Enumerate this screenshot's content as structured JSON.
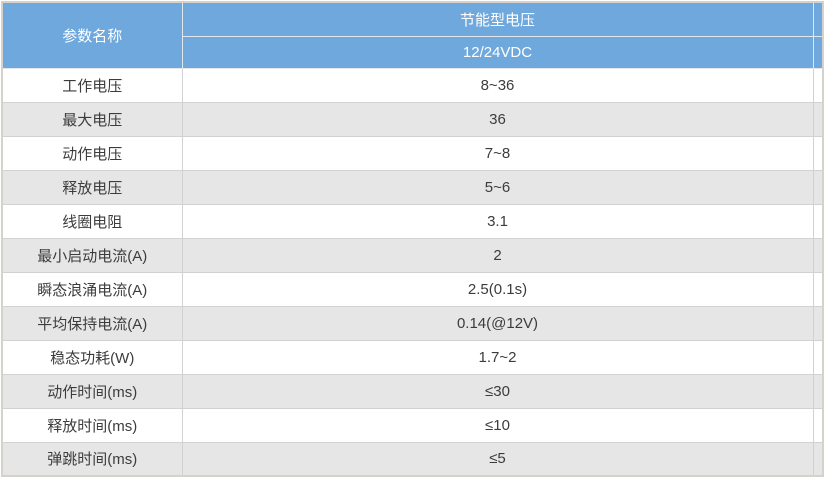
{
  "table": {
    "header": {
      "param_col": "参数名称",
      "group": "节能型电压",
      "subgroup": "12/24VDC"
    },
    "rows": [
      {
        "label": "工作电压",
        "value": "8~36"
      },
      {
        "label": "最大电压",
        "value": "36"
      },
      {
        "label": "动作电压",
        "value": "7~8"
      },
      {
        "label": "释放电压",
        "value": "5~6"
      },
      {
        "label": "线圈电阻",
        "value": "3.1"
      },
      {
        "label": "最小启动电流(A)",
        "value": "2"
      },
      {
        "label": "瞬态浪涌电流(A)",
        "value": "2.5(0.1s)"
      },
      {
        "label": "平均保持电流(A)",
        "value": "0.14(@12V)"
      },
      {
        "label": "稳态功耗(W)",
        "value": "1.7~2"
      },
      {
        "label": "动作时间(ms)",
        "value": "≤30"
      },
      {
        "label": "释放时间(ms)",
        "value": "≤10"
      },
      {
        "label": "弹跳时间(ms)",
        "value": "≤5"
      }
    ]
  },
  "colors": {
    "header_bg": "#6FA8DC",
    "header_text": "#FFFFFF",
    "stripe_bg": "#E6E6E6",
    "row_bg": "#FFFFFF",
    "grid_border": "#D2D2D2",
    "outer_border": "#D5D2CD",
    "body_text": "#3C3C3C"
  },
  "chart_data": {
    "type": "table",
    "title": "",
    "column_groups": [
      {
        "label": "参数名称",
        "sub": ""
      },
      {
        "label": "节能型电压",
        "sub": "12/24VDC"
      }
    ],
    "columns": [
      "参数名称",
      "节能型电压 12/24VDC"
    ],
    "rows": [
      [
        "工作电压",
        "8~36"
      ],
      [
        "最大电压",
        "36"
      ],
      [
        "动作电压",
        "7~8"
      ],
      [
        "释放电压",
        "5~6"
      ],
      [
        "线圈电阻",
        "3.1"
      ],
      [
        "最小启动电流(A)",
        "2"
      ],
      [
        "瞬态浪涌电流(A)",
        "2.5(0.1s)"
      ],
      [
        "平均保持电流(A)",
        "0.14(@12V)"
      ],
      [
        "稳态功耗(W)",
        "1.7~2"
      ],
      [
        "动作时间(ms)",
        "≤30"
      ],
      [
        "释放时间(ms)",
        "≤10"
      ],
      [
        "弹跳时间(ms)",
        "≤5"
      ]
    ],
    "layout": {
      "zebra_striping": true,
      "first_data_row_bg": "white",
      "header_rows": 2,
      "param_column_rowspan": 2
    }
  }
}
